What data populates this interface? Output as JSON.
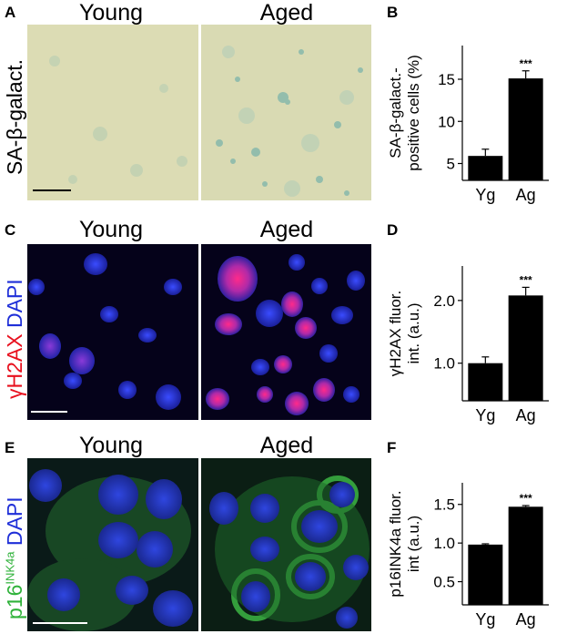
{
  "rows": [
    {
      "image_panel_letter": "A",
      "chart_panel_letter": "B",
      "col_young": "Young",
      "col_aged": "Aged",
      "stain_label": "SA-β-galact."
    },
    {
      "image_panel_letter": "C",
      "chart_panel_letter": "D",
      "col_young": "Young",
      "col_aged": "Aged",
      "stain_label_red": "γH2AX",
      "stain_label_blue": "DAPI"
    },
    {
      "image_panel_letter": "E",
      "chart_panel_letter": "F",
      "col_young": "Young",
      "col_aged": "Aged",
      "stain_label_green": "p16",
      "stain_label_green_sup": "INK4a",
      "stain_label_blue": "DAPI"
    }
  ],
  "colors": {
    "sa_bg": "#dcdcb2",
    "sa_stain": "#5aa6a8",
    "fluor_bg": "#05021a",
    "dapi": "#2a3cd6",
    "h2ax": "#ff2a8a",
    "p16": "#2fa83a"
  },
  "chart_data": [
    {
      "type": "bar",
      "categories": [
        "Yg",
        "Ag"
      ],
      "values": [
        5.9,
        15.1
      ],
      "errors": [
        0.8,
        0.9
      ],
      "significance": [
        "",
        "***"
      ],
      "ylabel_line1": "SA-β-galact.-",
      "ylabel_line2": "positive cells (%)",
      "ylim": [
        3,
        19
      ],
      "yticks": [
        5,
        10,
        15
      ],
      "ytick_labels": [
        "5",
        "10",
        "15"
      ]
    },
    {
      "type": "bar",
      "categories": [
        "Yg",
        "Ag"
      ],
      "values": [
        1.0,
        2.08
      ],
      "errors": [
        0.1,
        0.13
      ],
      "significance": [
        "",
        "***"
      ],
      "ylabel_line1": "γH2AX fluor.",
      "ylabel_line2": "int. (a.u.)",
      "ylim": [
        0.4,
        2.55
      ],
      "yticks": [
        1.0,
        2.0
      ],
      "ytick_labels": [
        "1.0",
        "2.0"
      ]
    },
    {
      "type": "bar",
      "categories": [
        "Yg",
        "Ag"
      ],
      "values": [
        0.98,
        1.47
      ],
      "errors": [
        0.01,
        0.015
      ],
      "significance": [
        "",
        "***"
      ],
      "ylabel_line1": "p16INK4a fluor.",
      "ylabel_line2": "int (a.u.)",
      "ylim": [
        0.2,
        1.78
      ],
      "yticks": [
        0.5,
        1.0,
        1.5
      ],
      "ytick_labels": [
        "0.5",
        "1.0",
        "1.5"
      ]
    }
  ]
}
